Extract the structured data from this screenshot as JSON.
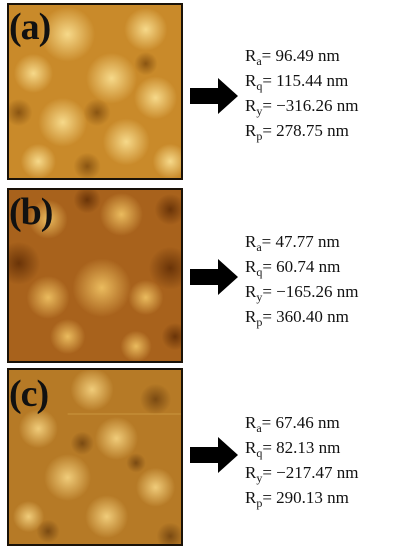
{
  "panels": [
    {
      "label": "(a)",
      "params": [
        {
          "symbol": "R",
          "sub": "a",
          "value": "= 96.49 nm"
        },
        {
          "symbol": "R",
          "sub": "q",
          "value": "= 115.44 nm"
        },
        {
          "symbol": "R",
          "sub": "y",
          "value": "= −316.26 nm"
        },
        {
          "symbol": "R",
          "sub": "p",
          "value": "= 278.75 nm"
        }
      ]
    },
    {
      "label": "(b)",
      "params": [
        {
          "symbol": "R",
          "sub": "a",
          "value": "= 47.77 nm"
        },
        {
          "symbol": "R",
          "sub": "q",
          "value": "= 60.74 nm"
        },
        {
          "symbol": "R",
          "sub": "y",
          "value": "= −165.26 nm"
        },
        {
          "symbol": "R",
          "sub": "p",
          "value": "= 360.40 nm"
        }
      ]
    },
    {
      "label": "(c)",
      "params": [
        {
          "symbol": "R",
          "sub": "a",
          "value": "= 67.46 nm"
        },
        {
          "symbol": "R",
          "sub": "q",
          "value": "= 82.13 nm"
        },
        {
          "symbol": "R",
          "sub": "y",
          "value": "= −217.47 nm"
        },
        {
          "symbol": "R",
          "sub": "p",
          "value": "= 290.13 nm"
        }
      ]
    }
  ],
  "colors": {
    "panel_a_base": "#c98a2a",
    "panel_b_base": "#a8621c",
    "panel_c_base": "#b67a26",
    "text": "#111111",
    "arrow": "#000000"
  }
}
